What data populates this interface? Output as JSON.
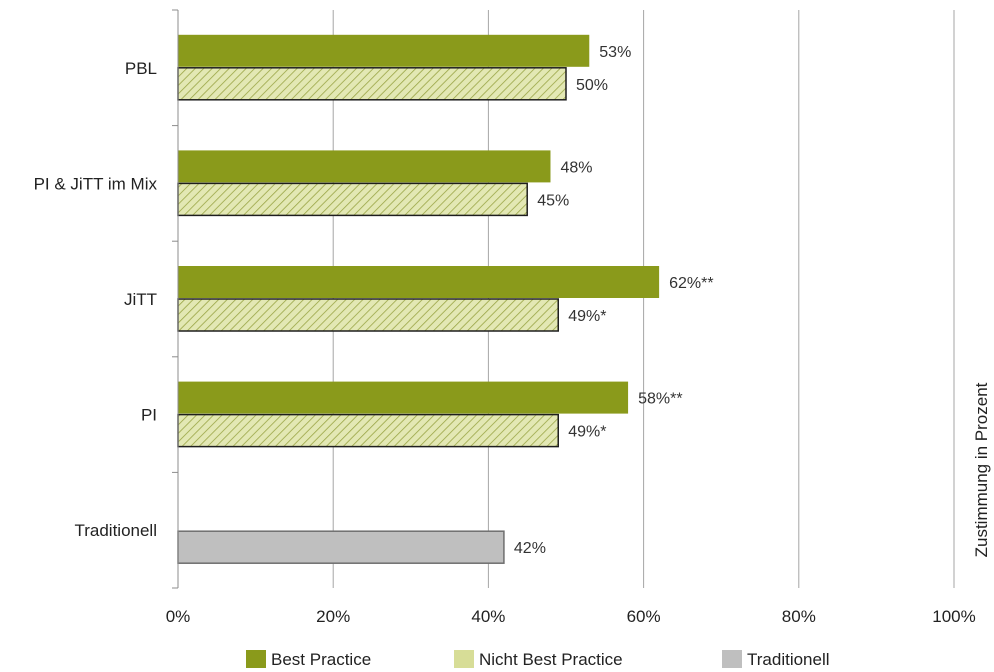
{
  "chart_data": {
    "type": "bar",
    "orientation": "horizontal",
    "categories": [
      "PBL",
      "PI & JiTT im Mix",
      "JiTT",
      "PI",
      "Traditionell"
    ],
    "series": [
      {
        "name": "Best Practice",
        "color": "#8a9a1b",
        "pattern": "solid",
        "values": [
          53,
          48,
          62,
          58,
          null
        ],
        "labels": [
          "53%",
          "48%",
          "62%**",
          "58%**",
          ""
        ]
      },
      {
        "name": "Nicht Best Practice",
        "color": "#d7dd97",
        "pattern": "diagonal-hatch",
        "values": [
          50,
          45,
          49,
          49,
          null
        ],
        "labels": [
          "50%",
          "45%",
          "49%*",
          "49%*",
          ""
        ]
      },
      {
        "name": "Traditionell",
        "color": "#bfbfbf",
        "pattern": "solid",
        "values": [
          null,
          null,
          null,
          null,
          42
        ],
        "labels": [
          "",
          "",
          "",
          "",
          "42%"
        ]
      }
    ],
    "xlim": [
      0,
      100
    ],
    "xticks": [
      "0%",
      "20%",
      "40%",
      "60%",
      "80%",
      "100%"
    ],
    "ylabel_right": "Zustimmung in Prozent",
    "grid": "vertical",
    "legend_position": "bottom"
  }
}
